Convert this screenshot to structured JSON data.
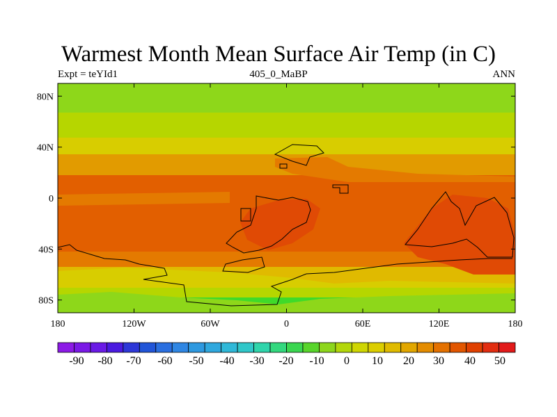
{
  "title": "Warmest Month Mean Surface Air Temp (in C)",
  "subtitle_left": "Expt = teYId1",
  "subtitle_center": "405_0_MaBP",
  "subtitle_right": "ANN",
  "axes": {
    "lat_ticks": [
      {
        "value": 80,
        "label": "80N"
      },
      {
        "value": 40,
        "label": "40N"
      },
      {
        "value": 0,
        "label": "0"
      },
      {
        "value": -40,
        "label": "40S"
      },
      {
        "value": -80,
        "label": "80S"
      }
    ],
    "lon_ticks": [
      {
        "value": -180,
        "label": "180"
      },
      {
        "value": -120,
        "label": "120W"
      },
      {
        "value": -60,
        "label": "60W"
      },
      {
        "value": 0,
        "label": "0"
      },
      {
        "value": 60,
        "label": "60E"
      },
      {
        "value": 120,
        "label": "120E"
      },
      {
        "value": 180,
        "label": "180"
      }
    ],
    "lat_range": [
      -90,
      90
    ],
    "lon_range": [
      -180,
      180
    ]
  },
  "colorbar": {
    "labels": [
      "-90",
      "-80",
      "-70",
      "-60",
      "-50",
      "-40",
      "-30",
      "-20",
      "-10",
      "0",
      "10",
      "20",
      "30",
      "40",
      "50"
    ],
    "colors": [
      "#8c1ae6",
      "#7a19e6",
      "#6a1ae6",
      "#4a1ae0",
      "#2d37d8",
      "#2155d8",
      "#2a6fe0",
      "#2f86e3",
      "#2e99e0",
      "#2fa8de",
      "#2fb8d8",
      "#30c7c9",
      "#2fd5ab",
      "#33d87e",
      "#3ad650",
      "#58d52b",
      "#8dd61c",
      "#b3d70a",
      "#cfd602",
      "#dcce00",
      "#e0bb00",
      "#e2a700",
      "#e48c00",
      "#e47100",
      "#e25600",
      "#e04000",
      "#e22d10",
      "#e21a1a"
    ]
  },
  "map_colors": {
    "c_neg5": "#3fda2a",
    "c_0": "#8ed71a",
    "c_10": "#b6d600",
    "c_20": "#d8cd00",
    "c_25": "#e0ba00",
    "c_30": "#e29b00",
    "c_35": "#e47a00",
    "c_40": "#e25f00",
    "c_45": "#e04a05"
  }
}
